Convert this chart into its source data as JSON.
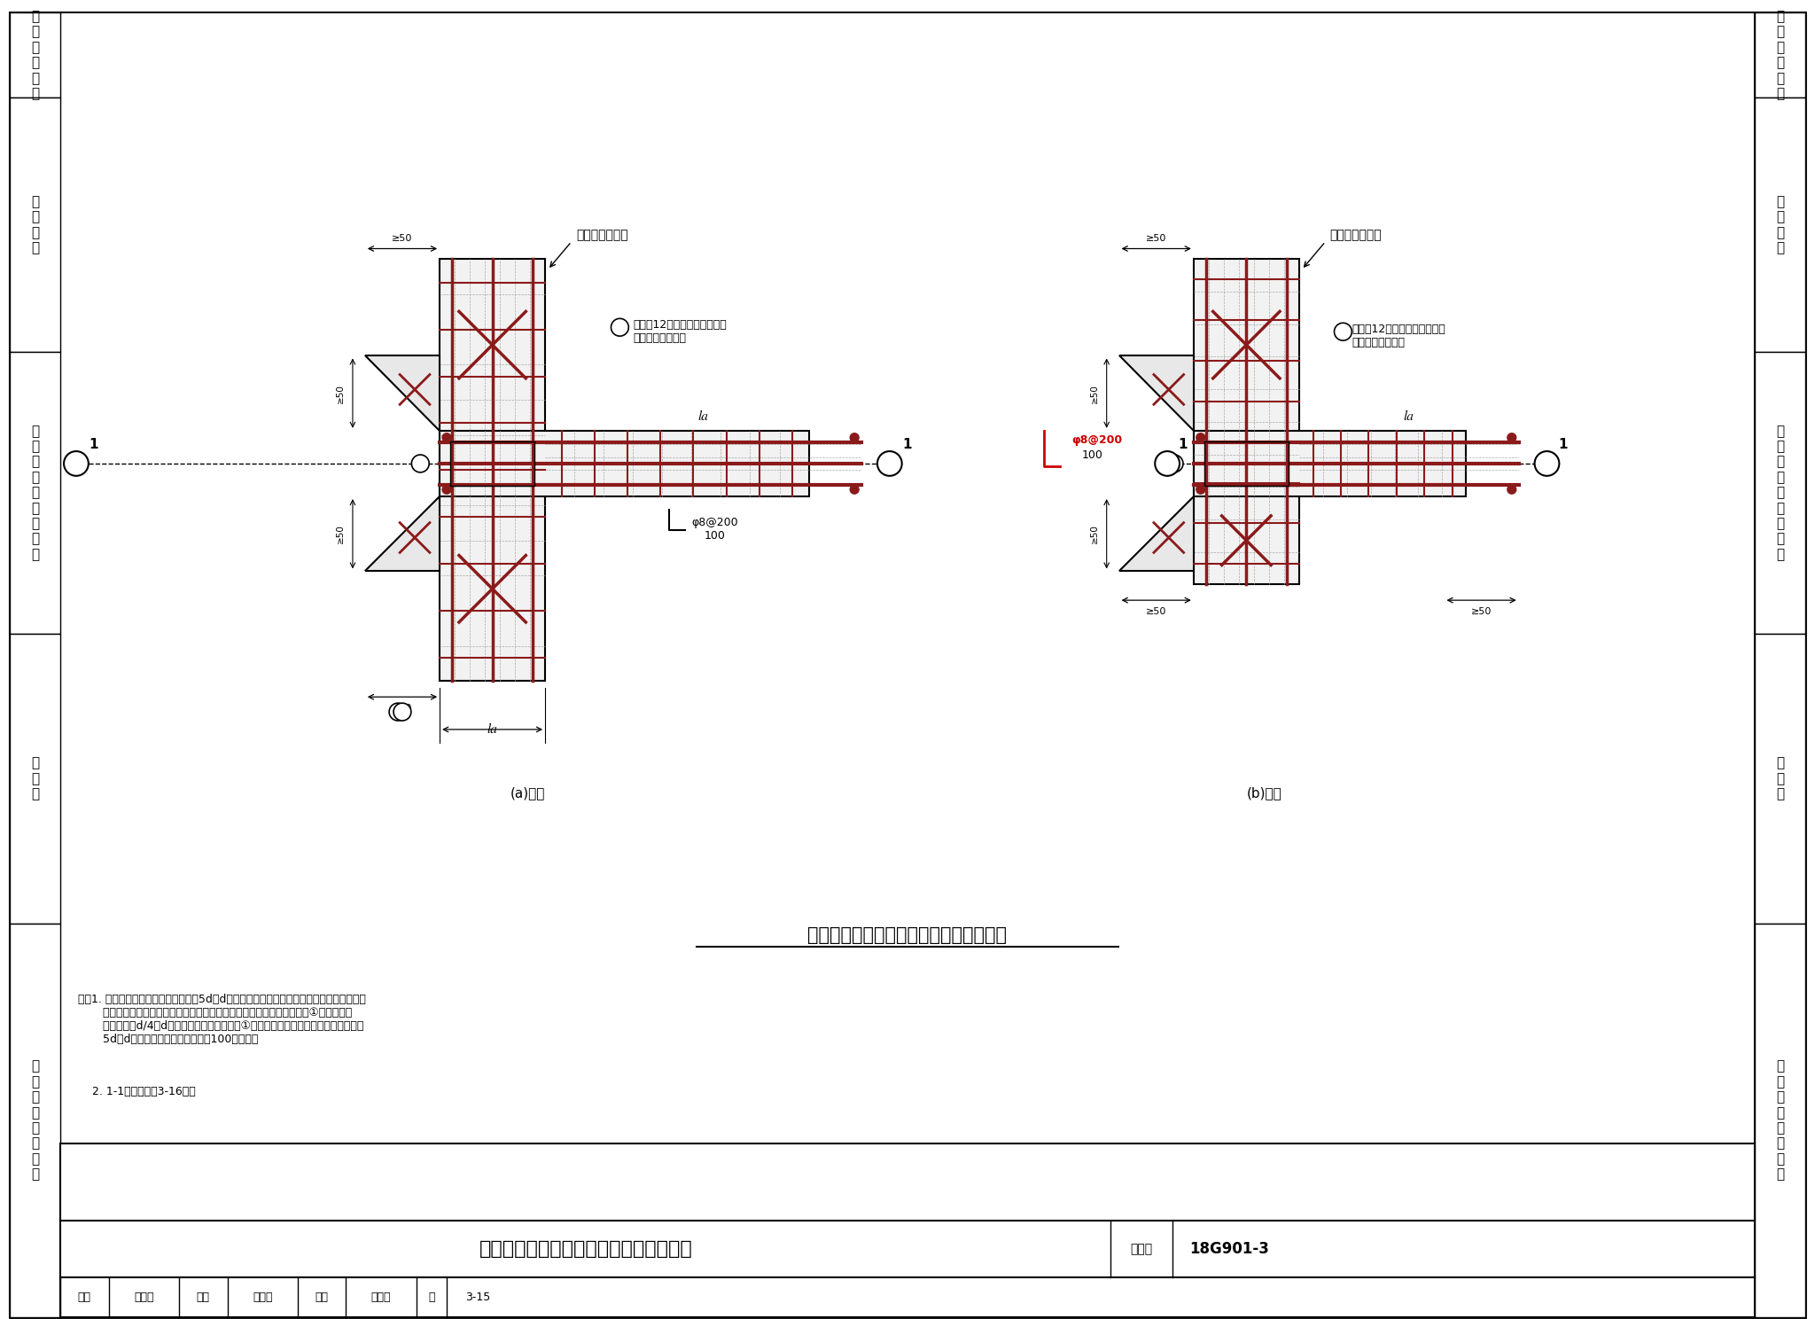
{
  "title": "端部无外伸基础梁与柱节点钢筋排布构造",
  "figure_number": "18G901-3",
  "page": "3-15",
  "bg_color": "#ffffff",
  "border_color": "#000000",
  "dark_red": "#8B1A1A",
  "light_gray": "#c8c8c8",
  "subtitle_a": "(a)边柱",
  "subtitle_b": "(b)角柱",
  "note1": "注：1. 柱部分箍筋的保护层厚度不大于5d（d为箍圆钢筋的最大直径）的部位应填空补充箍圈\n       区横向钢筋。所补充钢筋的形式同本图中基础梁侧腋部位横向构造钢筋①，且应满足\n       直径不小于d/4（d为纵筋最大直径），包括①在内的所有箍圈区横向钢筋间距不大于\n       5d（d为纵筋最小直径）且不大于100的要求。",
  "note2": "    2. 1-1剖面详见第3-16页。",
  "table_title": "端部无外伸基础梁与柱节点钢筋排布构造",
  "table_atlas": "图集号",
  "table_atlas_val": "18G901-3",
  "table_page_val": "3-15",
  "annotation1": "直径＞12且不小于柱箍筋直径\n间距同柱箍筋间距",
  "label_jichubeam": "基础梁侧面钢筋",
  "label_stirrup": "φ8@200",
  "label_100": "100",
  "dim_50": "≥50",
  "la_label": "la"
}
